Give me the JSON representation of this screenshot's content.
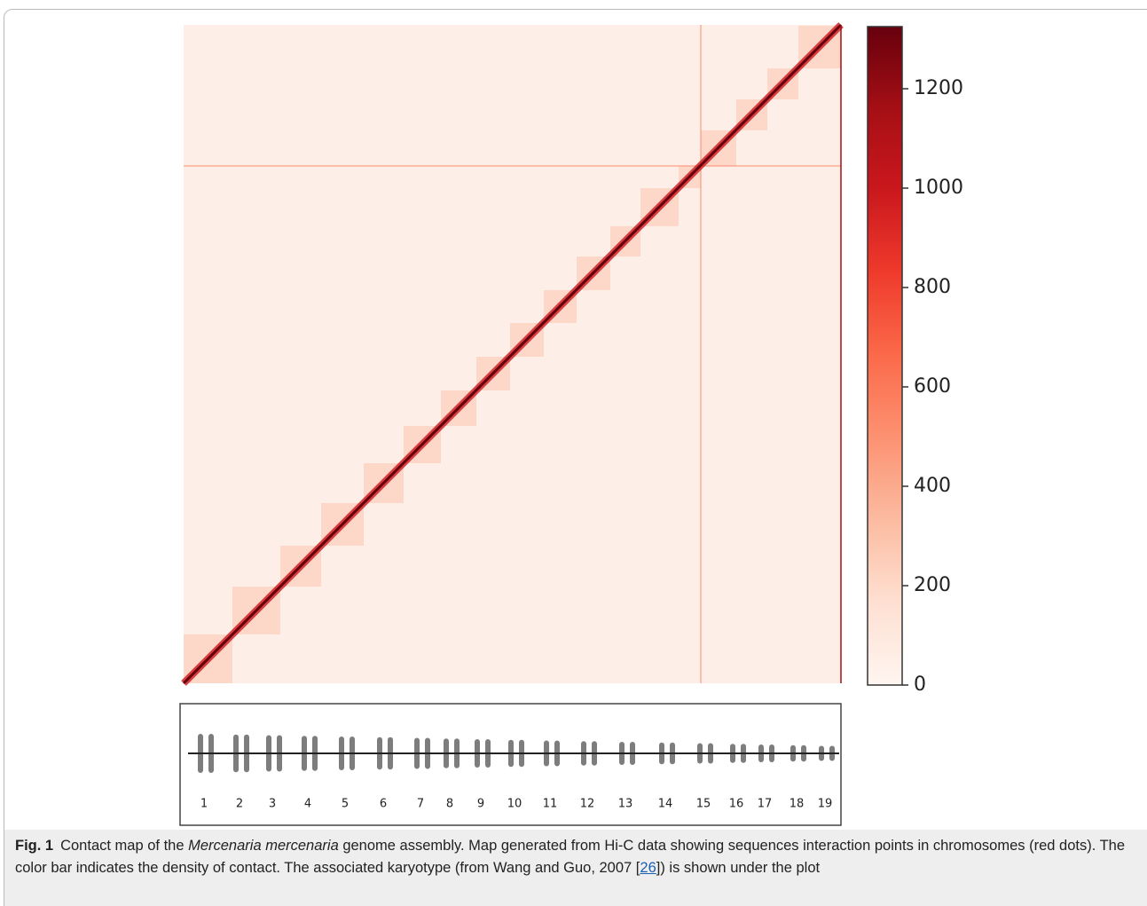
{
  "chart_data": {
    "type": "heatmap",
    "colorscale": [
      "#fff5f0",
      "#fee0d2",
      "#fcbba1",
      "#fc9272",
      "#fb6a4a",
      "#ef3b2c",
      "#cb181d",
      "#a50f15",
      "#67000d"
    ],
    "clim": [
      0,
      1325
    ],
    "cticks": [
      0,
      200,
      400,
      600,
      800,
      1000,
      1200
    ]
  },
  "karyotype": {
    "labels": [
      "1",
      "2",
      "3",
      "4",
      "5",
      "6",
      "7",
      "8",
      "9",
      "10",
      "11",
      "12",
      "13",
      "14",
      "15",
      "16",
      "17",
      "18",
      "19"
    ]
  },
  "caption": {
    "label": "Fig. 1",
    "text_1": "Contact map of the ",
    "species": "Mercenaria mercenaria",
    "text_2": " genome assembly. Map generated from Hi-C data showing sequences interaction points in chromosomes (red dots). The color bar indicates the density of contact. The associated karyotype (from Wang and Guo, 2007 [",
    "ref": "26",
    "text_3": "]) is shown under the plot"
  }
}
